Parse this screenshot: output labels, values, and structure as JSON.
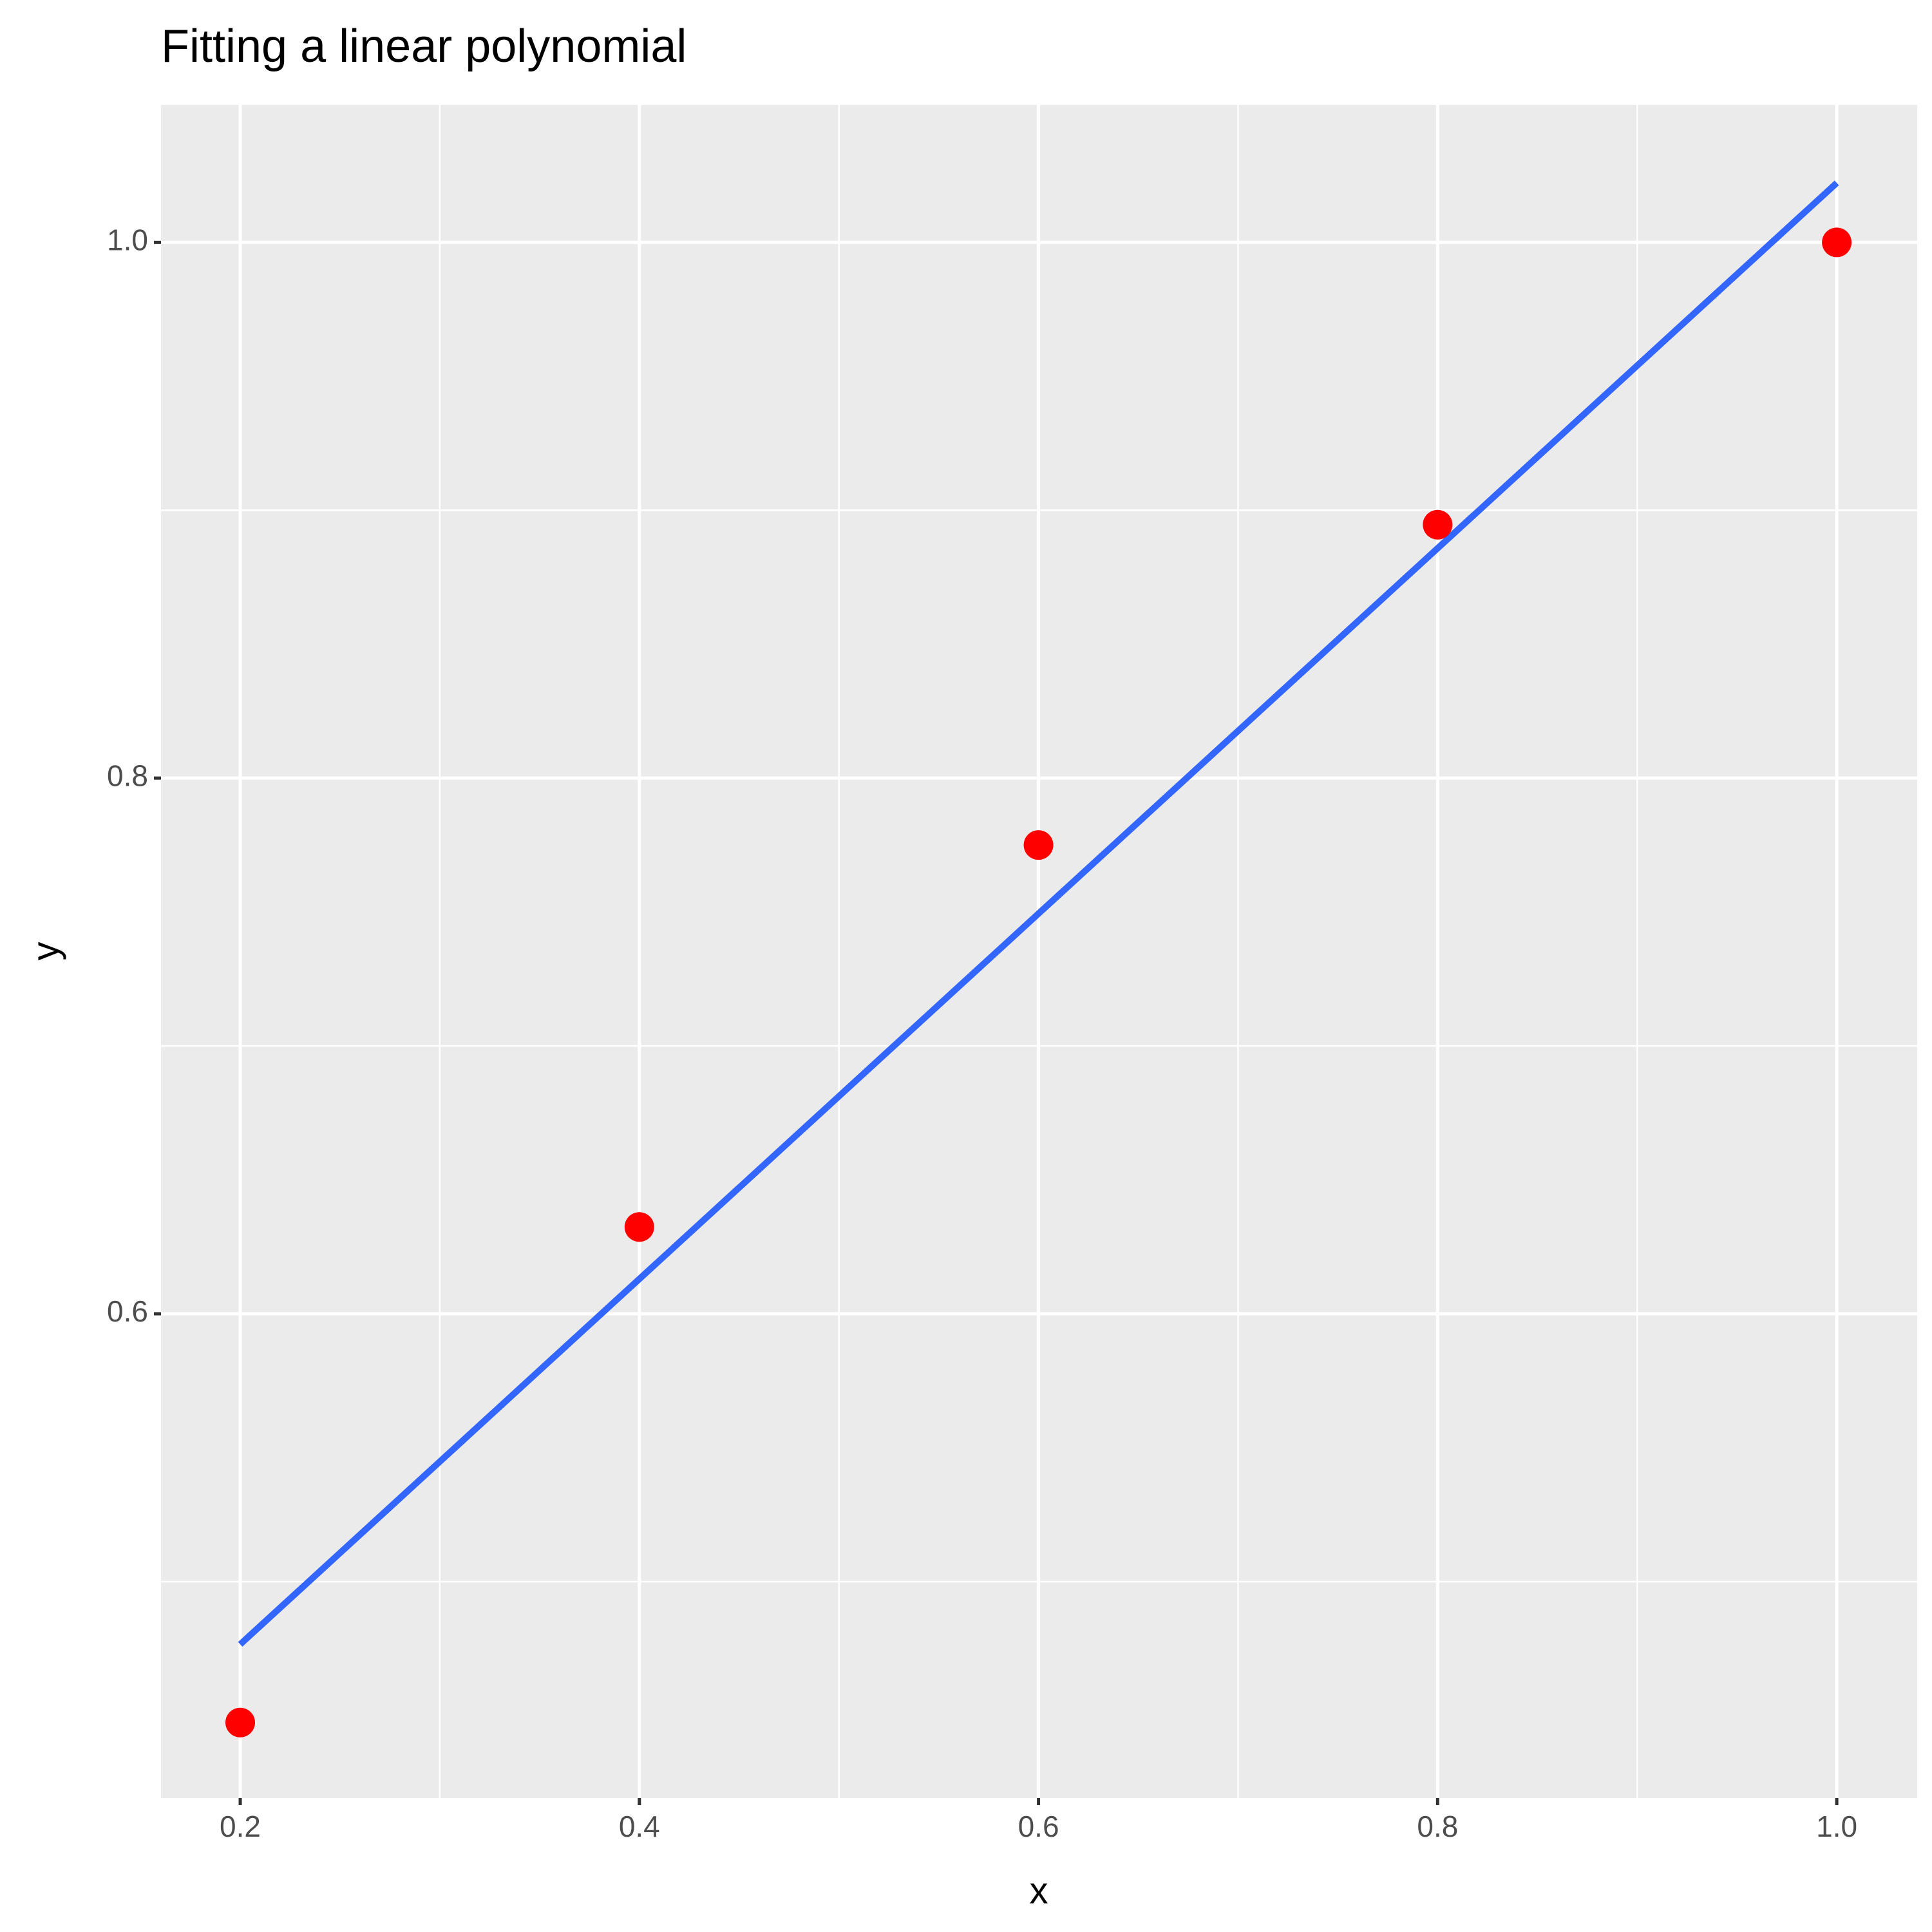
{
  "chart_data": {
    "type": "scatter",
    "title": "Fitting a linear polynomial",
    "x_label": "x",
    "y_label": "y",
    "points": {
      "x": [
        0.2,
        0.4,
        0.6,
        0.8,
        1.0
      ],
      "y": [
        0.4474,
        0.6324,
        0.775,
        0.8946,
        1.0
      ],
      "color": "#ff0000"
    },
    "fit_line": {
      "x": [
        0.2,
        1.0
      ],
      "y": [
        0.4766,
        1.0222
      ],
      "color": "#3366ff"
    },
    "xlim": [
      0.1603,
      1.0403
    ],
    "ylim": [
      0.4192,
      1.0513
    ],
    "xticks": [
      0.2,
      0.4,
      0.6,
      0.8,
      {
        "value": 1,
        "label": "1.0"
      }
    ],
    "yticks": [
      0.6,
      0.8,
      {
        "value": 1,
        "label": "1.0"
      }
    ],
    "xminor": [
      0.3,
      0.5,
      0.7,
      0.9
    ],
    "yminor": [
      0.5,
      0.7,
      0.9
    ],
    "grid": true
  }
}
